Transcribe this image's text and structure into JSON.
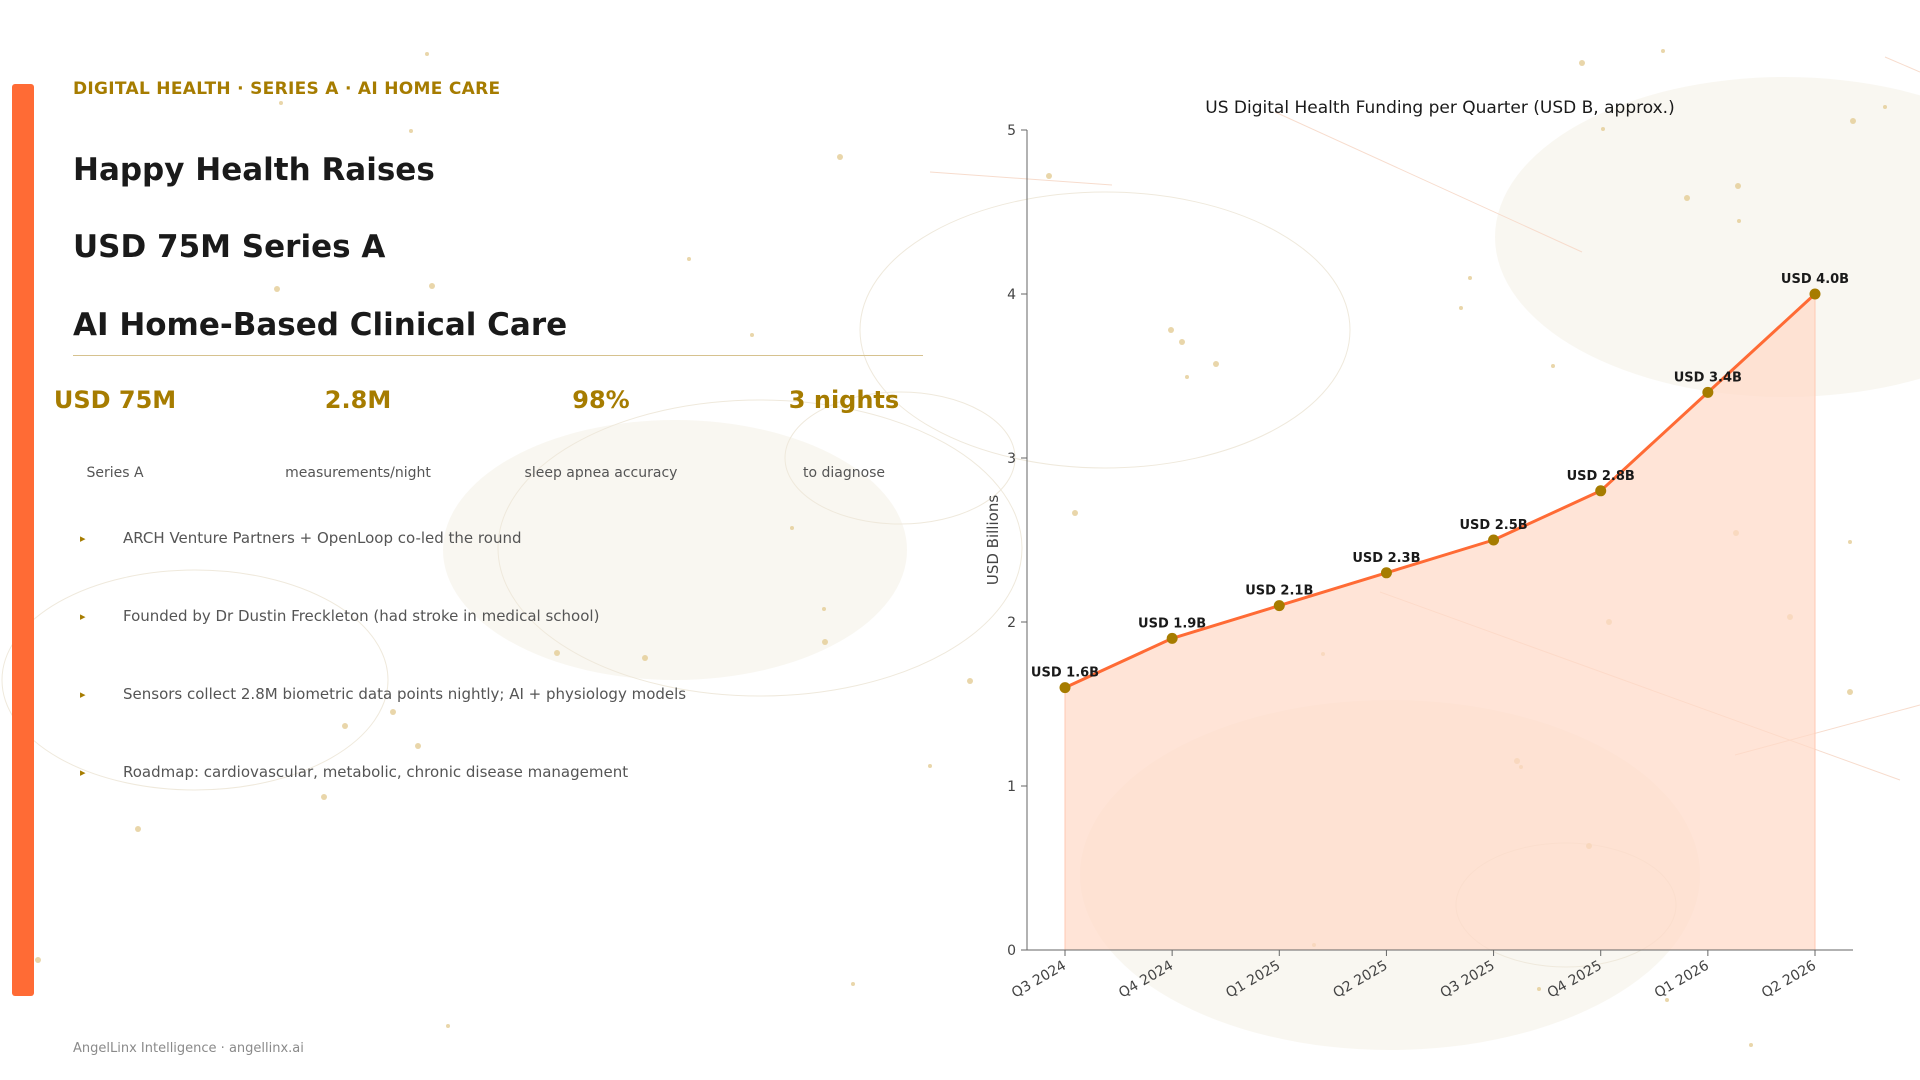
{
  "eyebrow": "DIGITAL HEALTH · SERIES A · AI HOME CARE",
  "title_lines": [
    "Happy Health Raises",
    "USD 75M Series A",
    "AI Home-Based Clinical Care"
  ],
  "stats": [
    {
      "value": "USD 75M",
      "label": "Series A"
    },
    {
      "value": "2.8M",
      "label": "measurements/night"
    },
    {
      "value": "98%",
      "label": "sleep apnea accuracy"
    },
    {
      "value": "3 nights",
      "label": "to diagnose"
    }
  ],
  "bullets": [
    "ARCH Venture Partners + OpenLoop co-led the round",
    "Founded by Dr Dustin Freckleton (had stroke in medical school)",
    "Sensors collect 2.8M biometric data points nightly; AI + physiology models",
    "Roadmap: cardiovascular, metabolic, chronic disease management"
  ],
  "bullet_icon": "triangle-right-icon",
  "footer": "AngelLinx Intelligence  ·  angellinx.ai",
  "colors": {
    "accent": "#ff6b35",
    "gold": "#a67c00",
    "fill": "#ffd9c8",
    "text": "#1a1a1a",
    "muted": "#555555"
  },
  "chart_data": {
    "type": "area",
    "title": "US Digital Health Funding per Quarter (USD B, approx.)",
    "xlabel": "",
    "ylabel": "USD Billions",
    "categories": [
      "Q3 2024",
      "Q4 2024",
      "Q1 2025",
      "Q2 2025",
      "Q3 2025",
      "Q4 2025",
      "Q1 2026",
      "Q2 2026"
    ],
    "values": [
      1.6,
      1.9,
      2.1,
      2.3,
      2.5,
      2.8,
      3.4,
      4.0
    ],
    "data_labels": [
      "USD 1.6B",
      "USD 1.9B",
      "USD 2.1B",
      "USD 2.3B",
      "USD 2.5B",
      "USD 2.8B",
      "USD 3.4B",
      "USD 4.0B"
    ],
    "ylim": [
      0,
      5
    ],
    "yticks": [
      "0",
      "1",
      "2",
      "3",
      "4",
      "5"
    ],
    "grid": false,
    "legend": "none",
    "line_color": "#ff6b35",
    "marker_color": "#a67c00",
    "fill_color": "#ffd9c8"
  }
}
